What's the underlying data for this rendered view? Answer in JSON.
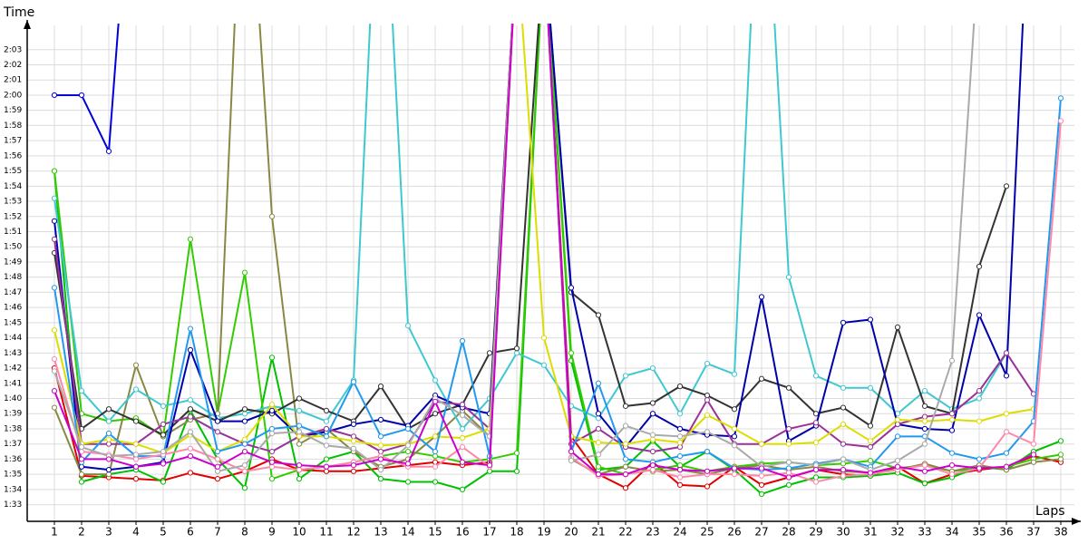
{
  "chart_data": {
    "type": "line",
    "y_title": "Time",
    "x_title": "Laps",
    "grid": true,
    "x": [
      1,
      2,
      3,
      4,
      5,
      6,
      7,
      8,
      9,
      10,
      11,
      12,
      13,
      14,
      15,
      16,
      17,
      18,
      19,
      20,
      21,
      22,
      23,
      24,
      25,
      26,
      27,
      28,
      29,
      30,
      31,
      32,
      33,
      34,
      35,
      36,
      37,
      38
    ],
    "xlim": [
      0,
      38.5
    ],
    "xticks": [
      1,
      2,
      3,
      4,
      5,
      6,
      7,
      8,
      9,
      10,
      11,
      12,
      13,
      14,
      15,
      16,
      17,
      18,
      19,
      20,
      21,
      22,
      23,
      24,
      25,
      26,
      27,
      28,
      29,
      30,
      31,
      32,
      33,
      34,
      35,
      36,
      37,
      38
    ],
    "ylim": [
      91.9,
      124.6
    ],
    "yticks": [
      {
        "value": 93,
        "label": "1:33"
      },
      {
        "value": 94,
        "label": "1:34"
      },
      {
        "value": 95,
        "label": "1:35"
      },
      {
        "value": 96,
        "label": "1:36"
      },
      {
        "value": 97,
        "label": "1:37"
      },
      {
        "value": 98,
        "label": "1:38"
      },
      {
        "value": 99,
        "label": "1:39"
      },
      {
        "value": 100,
        "label": "1:40"
      },
      {
        "value": 101,
        "label": "1:41"
      },
      {
        "value": 102,
        "label": "1:42"
      },
      {
        "value": 103,
        "label": "1:43"
      },
      {
        "value": 104,
        "label": "1:44"
      },
      {
        "value": 105,
        "label": "1:45"
      },
      {
        "value": 106,
        "label": "1:46"
      },
      {
        "value": 107,
        "label": "1:47"
      },
      {
        "value": 108,
        "label": "1:48"
      },
      {
        "value": 109,
        "label": "1:49"
      },
      {
        "value": 110,
        "label": "1:50"
      },
      {
        "value": 111,
        "label": "1:51"
      },
      {
        "value": 112,
        "label": "1:52"
      },
      {
        "value": 113,
        "label": "1:53"
      },
      {
        "value": 114,
        "label": "1:54"
      },
      {
        "value": 115,
        "label": "1:55"
      },
      {
        "value": 116,
        "label": "1:56"
      },
      {
        "value": 117,
        "label": "1:57"
      },
      {
        "value": 118,
        "label": "1:58"
      },
      {
        "value": 119,
        "label": "1:59"
      },
      {
        "value": 120,
        "label": "2:00"
      },
      {
        "value": 121,
        "label": "2:01"
      },
      {
        "value": 122,
        "label": "2:02"
      },
      {
        "value": 123,
        "label": "2:03"
      }
    ],
    "series": [
      {
        "color": "#0000dd",
        "values": [
          120,
          120,
          116.3,
          140,
          null,
          null,
          null,
          null,
          null,
          null,
          null,
          null,
          null,
          null,
          null,
          null,
          null,
          null,
          null,
          null,
          null,
          null,
          null,
          null,
          null,
          null,
          null,
          null,
          null,
          null,
          null,
          null,
          null,
          null,
          null,
          null,
          null,
          null
        ]
      },
      {
        "color": "#e00000",
        "values": [
          102,
          94.9,
          94.8,
          94.7,
          94.6,
          95.1,
          94.7,
          95.2,
          96,
          95.3,
          95.2,
          95.2,
          95.4,
          95.6,
          95.8,
          95.6,
          95.8,
          130,
          130,
          97.5,
          95,
          94.1,
          95.8,
          94.3,
          94.2,
          95.5,
          94.3,
          94.8,
          95.3,
          95,
          94.9,
          95.5,
          94.4,
          95,
          95.3,
          95.5,
          96.2,
          95.8
        ]
      },
      {
        "color": "#00c000",
        "values": [
          115,
          94.5,
          95,
          95.3,
          94.5,
          99.2,
          96,
          94.1,
          102.7,
          94.7,
          96,
          96.5,
          94.7,
          94.5,
          94.5,
          94,
          95.2,
          95.2,
          130,
          102.5,
          95.3,
          95.5,
          97.2,
          95.5,
          96.5,
          95.3,
          93.7,
          94.3,
          94.8,
          94.8,
          94.9,
          95.1,
          94.4,
          94.8,
          95.5,
          95.3,
          96.5,
          97.2
        ]
      },
      {
        "color": "#33cc00",
        "values": [
          115,
          99,
          98.5,
          98.7,
          97.5,
          110.5,
          99,
          108.3,
          94.7,
          95.3,
          95.5,
          95.8,
          96.2,
          96.5,
          96.2,
          95.8,
          96,
          96.4,
          130,
          103,
          95.5,
          95,
          95.3,
          95.6,
          95.2,
          95.5,
          95.7,
          95.8,
          95.6,
          95.7,
          95.9,
          95.4,
          95.6,
          95.2,
          95.4,
          95.5,
          96,
          96.3
        ]
      },
      {
        "color": "#888844",
        "values": [
          99.4,
          95,
          95,
          102.2,
          97.5,
          98.6,
          99,
          140,
          112,
          97,
          98,
          96.5,
          95.5,
          96,
          97.5,
          99.2,
          97.5,
          130,
          130,
          96,
          95,
          95.5,
          95.2,
          95.3,
          95,
          95.4,
          95.6,
          95.3,
          95.5,
          95.2,
          95.1,
          95.3,
          95.7,
          95.2,
          95.6,
          95.3,
          95.8,
          96
        ]
      },
      {
        "color": "#40c8d0",
        "values": [
          113.2,
          100.5,
          98.5,
          100.6,
          99.5,
          99.9,
          98.7,
          99,
          99.5,
          99.2,
          98.5,
          101.2,
          140,
          104.8,
          101.2,
          98,
          100,
          103,
          102.2,
          99.5,
          98.7,
          101.5,
          102,
          99,
          102.3,
          101.6,
          140,
          108,
          101.5,
          100.7,
          100.7,
          99,
          100.5,
          99.3,
          100,
          103,
          null,
          null
        ]
      },
      {
        "color": "#333333",
        "values": [
          109.6,
          98,
          99.3,
          98.5,
          97.6,
          99.3,
          98.5,
          99.3,
          99,
          100,
          99.2,
          98.5,
          100.8,
          98,
          99,
          99.6,
          103,
          103.3,
          130,
          107,
          105.5,
          99.5,
          99.7,
          100.8,
          100.2,
          99.3,
          101.3,
          100.7,
          99,
          99.4,
          98.2,
          104.7,
          99.5,
          99,
          108.7,
          114,
          null,
          null
        ]
      },
      {
        "color": "#0000aa",
        "values": [
          111.7,
          95.5,
          95.3,
          95.5,
          95.8,
          103.2,
          98.5,
          98.5,
          99.2,
          97.5,
          97.8,
          98.3,
          98.6,
          98.2,
          100.2,
          99.4,
          99,
          130,
          130,
          107.3,
          99,
          96.8,
          99,
          98,
          97.6,
          97.5,
          106.7,
          97.2,
          98.2,
          105,
          105.2,
          98.3,
          98,
          97.9,
          105.5,
          101.5,
          140,
          null
        ]
      },
      {
        "color": "#993399",
        "values": [
          110.5,
          97,
          97,
          97,
          98.3,
          98.8,
          97.8,
          97,
          96.5,
          97.5,
          98,
          97.5,
          96.5,
          97,
          99.8,
          99.6,
          98,
          130,
          130,
          97,
          98,
          96.8,
          96.5,
          96.8,
          99.9,
          97,
          97,
          98,
          98.4,
          97,
          96.8,
          98.3,
          98.8,
          99,
          100.5,
          103,
          100.3,
          null
        ]
      },
      {
        "color": "#dddd00",
        "values": [
          104.5,
          97,
          97.3,
          97,
          96.4,
          97.6,
          96.5,
          97.3,
          99.6,
          97.5,
          97.5,
          97.2,
          96.9,
          97,
          97.5,
          97.4,
          98,
          130,
          104,
          97.5,
          97.1,
          97,
          97.3,
          97.1,
          98.9,
          98,
          97,
          97,
          97.1,
          98.3,
          97.2,
          98.6,
          98.5,
          98.6,
          98.5,
          99,
          99.3,
          null
        ]
      },
      {
        "color": "#2299ee",
        "values": [
          107.3,
          95.8,
          97.7,
          96.2,
          96.2,
          104.6,
          96.5,
          97,
          98,
          98.2,
          97.5,
          101.1,
          97.5,
          98,
          96.5,
          103.8,
          96.2,
          130,
          130,
          96.5,
          101,
          96,
          95.8,
          96.2,
          96.5,
          95.4,
          95.3,
          95.4,
          95.7,
          96,
          95.5,
          97.5,
          97.5,
          96.4,
          96,
          96.4,
          98.5,
          119.8
        ]
      },
      {
        "color": "#ff88aa",
        "values": [
          102.6,
          96.5,
          96.3,
          96,
          96.3,
          96.7,
          96,
          95.2,
          95.5,
          95.3,
          95.5,
          95.8,
          96.2,
          95.5,
          95.5,
          96.8,
          95.5,
          130,
          130,
          96.1,
          94.9,
          95,
          95.3,
          94.8,
          95,
          95,
          94.9,
          95.1,
          94.5,
          94.9,
          95,
          95.3,
          95.6,
          95,
          95.4,
          97.8,
          97,
          118.3
        ]
      },
      {
        "color": "#aaaaaa",
        "values": [
          101.8,
          96.8,
          96.2,
          96.3,
          96.5,
          97.8,
          95.2,
          95.6,
          97.7,
          97.8,
          96.9,
          96.7,
          95.3,
          96.9,
          100,
          98.9,
          97.5,
          130,
          130,
          95.9,
          96.3,
          98.2,
          97.6,
          97.5,
          97.8,
          96.9,
          95.5,
          95.8,
          95.6,
          96,
          95.3,
          95.9,
          97,
          102.5,
          130,
          null,
          null,
          null
        ]
      },
      {
        "color": "#cc00cc",
        "values": [
          100.5,
          96,
          96,
          95.5,
          95.7,
          96.2,
          95.5,
          96.5,
          95.8,
          95.6,
          95.5,
          95.6,
          96,
          95.7,
          99.8,
          95.8,
          95.6,
          130,
          130,
          96.5,
          95,
          95,
          95.6,
          95.3,
          95.2,
          95.4,
          95.4,
          94.8,
          95.3,
          95.3,
          95.1,
          95.5,
          95.2,
          95.6,
          95.4,
          95.5,
          96.3,
          null
        ]
      }
    ]
  }
}
